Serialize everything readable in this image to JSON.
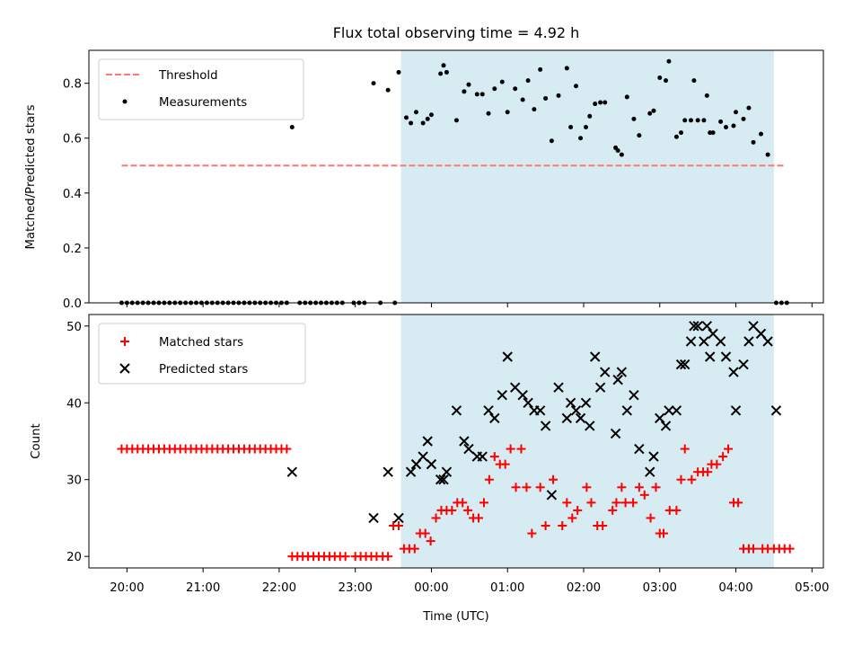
{
  "title": "Flux total observing time = 4.92 h",
  "colors": {
    "threshold": "#ff7777",
    "measurement": "#000000",
    "matched": "#ff0000",
    "predicted": "#000000",
    "span": "#add8e6"
  },
  "chart_data": [
    {
      "type": "scatter",
      "ylabel": "Matched/Predicted stars",
      "xlim": [
        19.5,
        29.15
      ],
      "ylim": [
        0,
        0.92
      ],
      "yticks": [
        0.0,
        0.2,
        0.4,
        0.6,
        0.8
      ],
      "ytick_labels": [
        "0.0",
        "0.2",
        "0.4",
        "0.6",
        "0.8"
      ],
      "shaded_span": [
        23.6,
        28.5
      ],
      "legend": {
        "placement": "upper left",
        "entries": [
          "Threshold",
          "Measurements"
        ]
      },
      "threshold": {
        "name": "Threshold",
        "x": [
          19.93,
          28.65
        ],
        "y": 0.5,
        "style": "dashed"
      },
      "series": [
        {
          "name": "Measurements",
          "x": [
            19.93,
            20.0,
            20.07,
            20.14,
            20.21,
            20.28,
            20.35,
            20.42,
            20.49,
            20.56,
            20.63,
            20.7,
            20.77,
            20.84,
            20.91,
            20.98,
            21.05,
            21.12,
            21.19,
            21.26,
            21.33,
            21.4,
            21.47,
            21.54,
            21.61,
            21.68,
            21.75,
            21.82,
            21.89,
            21.96,
            22.03,
            22.1,
            22.17,
            22.27,
            22.34,
            22.41,
            22.48,
            22.55,
            22.62,
            22.69,
            22.76,
            22.83,
            22.98,
            23.05,
            23.12,
            23.24,
            23.33,
            23.43,
            23.52,
            23.57,
            23.67,
            23.73,
            23.8,
            23.89,
            23.95,
            24.0,
            24.12,
            24.16,
            24.2,
            24.33,
            24.43,
            24.49,
            24.6,
            24.67,
            24.75,
            24.83,
            24.93,
            25.0,
            25.1,
            25.2,
            25.27,
            25.35,
            25.43,
            25.5,
            25.58,
            25.67,
            25.78,
            25.83,
            25.9,
            25.96,
            26.03,
            26.08,
            26.15,
            26.22,
            26.28,
            26.42,
            26.45,
            26.5,
            26.57,
            26.66,
            26.73,
            26.87,
            26.92,
            27.0,
            27.08,
            27.12,
            27.22,
            27.28,
            27.33,
            27.41,
            27.45,
            27.5,
            27.58,
            27.62,
            27.66,
            27.7,
            27.8,
            27.87,
            27.97,
            28.0,
            28.1,
            28.17,
            28.23,
            28.33,
            28.42,
            28.53,
            28.6,
            28.67
          ],
          "y": [
            0,
            0,
            0,
            0,
            0,
            0,
            0,
            0,
            0,
            0,
            0,
            0,
            0,
            0,
            0,
            0,
            0,
            0,
            0,
            0,
            0,
            0,
            0,
            0,
            0,
            0,
            0,
            0,
            0,
            0,
            0,
            0,
            0.64,
            0,
            0,
            0,
            0,
            0,
            0,
            0,
            0,
            0,
            0,
            0,
            0,
            0.8,
            0,
            0.775,
            0,
            0.84,
            0.675,
            0.655,
            0.695,
            0.655,
            0.67,
            0.685,
            0.835,
            0.865,
            0.84,
            0.665,
            0.77,
            0.795,
            0.76,
            0.76,
            0.69,
            0.78,
            0.805,
            0.695,
            0.78,
            0.74,
            0.81,
            0.705,
            0.85,
            0.745,
            0.59,
            0.755,
            0.855,
            0.64,
            0.79,
            0.6,
            0.64,
            0.68,
            0.725,
            0.73,
            0.73,
            0.565,
            0.555,
            0.54,
            0.75,
            0.67,
            0.61,
            0.69,
            0.7,
            0.82,
            0.81,
            0.88,
            0.605,
            0.62,
            0.665,
            0.665,
            0.81,
            0.665,
            0.665,
            0.755,
            0.62,
            0.62,
            0.66,
            0.64,
            0.645,
            0.695,
            0.67,
            0.71,
            0.585,
            0.615,
            0.54,
            0.0,
            0.0,
            0.0
          ]
        }
      ]
    },
    {
      "type": "scatter",
      "xlabel": "Time (UTC)",
      "ylabel": "Count",
      "xlim": [
        19.5,
        29.15
      ],
      "ylim": [
        18.5,
        51.5
      ],
      "yticks": [
        20,
        30,
        40,
        50
      ],
      "ytick_labels": [
        "20",
        "30",
        "40",
        "50"
      ],
      "xticks": [
        20,
        21,
        22,
        23,
        24,
        25,
        26,
        27,
        28,
        29
      ],
      "xtick_labels": [
        "20:00",
        "21:00",
        "22:00",
        "23:00",
        "00:00",
        "01:00",
        "02:00",
        "03:00",
        "04:00",
        "05:00"
      ],
      "shaded_span": [
        23.6,
        28.5
      ],
      "legend": {
        "placement": "upper left",
        "entries": [
          "Matched stars",
          "Predicted stars"
        ]
      },
      "series": [
        {
          "name": "Matched stars",
          "marker": "plus",
          "x": [
            19.93,
            20.0,
            20.07,
            20.14,
            20.21,
            20.28,
            20.35,
            20.42,
            20.49,
            20.56,
            20.63,
            20.7,
            20.77,
            20.84,
            20.91,
            20.98,
            21.05,
            21.12,
            21.19,
            21.26,
            21.33,
            21.4,
            21.47,
            21.54,
            21.61,
            21.68,
            21.75,
            21.82,
            21.89,
            21.96,
            22.03,
            22.1,
            22.17,
            22.24,
            22.31,
            22.38,
            22.45,
            22.52,
            22.59,
            22.66,
            22.73,
            22.8,
            22.87,
            23.0,
            23.07,
            23.14,
            23.21,
            23.28,
            23.36,
            23.43,
            23.5,
            23.57,
            23.64,
            23.71,
            23.78,
            23.85,
            23.92,
            23.99,
            24.06,
            24.13,
            24.2,
            24.27,
            24.34,
            24.41,
            24.48,
            24.55,
            24.62,
            24.69,
            24.76,
            24.83,
            24.9,
            24.97,
            25.04,
            25.11,
            25.18,
            25.25,
            25.32,
            25.43,
            25.5,
            25.6,
            25.72,
            25.78,
            25.85,
            25.92,
            26.04,
            26.1,
            26.18,
            26.25,
            26.38,
            26.43,
            26.5,
            26.55,
            26.65,
            26.73,
            26.8,
            26.88,
            26.95,
            27.0,
            27.05,
            27.13,
            27.22,
            27.28,
            27.33,
            27.42,
            27.5,
            27.57,
            27.63,
            27.68,
            27.75,
            27.83,
            27.9,
            27.97,
            28.03,
            28.1,
            28.17,
            28.23,
            28.35,
            28.42,
            28.5,
            28.57,
            28.64,
            28.71
          ],
          "y": [
            34,
            34,
            34,
            34,
            34,
            34,
            34,
            34,
            34,
            34,
            34,
            34,
            34,
            34,
            34,
            34,
            34,
            34,
            34,
            34,
            34,
            34,
            34,
            34,
            34,
            34,
            34,
            34,
            34,
            34,
            34,
            34,
            20,
            20,
            20,
            20,
            20,
            20,
            20,
            20,
            20,
            20,
            20,
            20,
            20,
            20,
            20,
            20,
            20,
            20,
            24,
            24,
            21,
            21,
            21,
            23,
            23,
            22,
            25,
            26,
            26,
            26,
            27,
            27,
            26,
            25,
            25,
            27,
            30,
            33,
            32,
            32,
            34,
            29,
            34,
            29,
            23,
            29,
            24,
            30,
            24,
            27,
            25,
            26,
            29,
            27,
            24,
            24,
            26,
            27,
            29,
            27,
            27,
            29,
            28,
            25,
            29,
            23,
            23,
            26,
            26,
            30,
            34,
            30,
            31,
            31,
            31,
            32,
            32,
            33,
            34,
            27,
            27,
            21,
            21,
            21,
            21,
            21,
            21,
            21,
            21,
            21
          ],
          "note_excluded": []
        },
        {
          "name": "Predicted stars",
          "marker": "x",
          "x": [
            22.17,
            23.24,
            23.43,
            23.57,
            23.73,
            23.8,
            23.89,
            23.95,
            24.0,
            24.12,
            24.16,
            24.2,
            24.33,
            24.43,
            24.49,
            24.6,
            24.67,
            24.75,
            24.83,
            24.93,
            25.0,
            25.1,
            25.2,
            25.27,
            25.35,
            25.43,
            25.5,
            25.58,
            25.67,
            25.78,
            25.83,
            25.9,
            25.96,
            26.03,
            26.08,
            26.15,
            26.22,
            26.28,
            26.42,
            26.45,
            26.5,
            26.57,
            26.66,
            26.73,
            26.87,
            26.92,
            27.0,
            27.08,
            27.12,
            27.22,
            27.28,
            27.33,
            27.41,
            27.45,
            27.5,
            27.58,
            27.62,
            27.66,
            27.7,
            27.8,
            27.87,
            27.97,
            28.0,
            28.1,
            28.17,
            28.23,
            28.33,
            28.42,
            28.53
          ],
          "y": [
            31,
            25,
            31,
            25,
            31,
            32,
            33,
            35,
            32,
            30,
            30,
            31,
            39,
            35,
            34,
            33,
            33,
            39,
            38,
            41,
            46,
            42,
            41,
            40,
            39,
            39,
            37,
            28,
            42,
            38,
            40,
            39,
            38,
            40,
            37,
            46,
            42,
            44,
            36,
            43,
            44,
            39,
            41,
            34,
            31,
            33,
            38,
            37,
            39,
            39,
            45,
            45,
            48,
            50,
            50,
            48,
            50,
            46,
            49,
            48,
            46,
            44,
            39,
            45,
            48,
            50,
            49,
            48,
            39
          ]
        }
      ]
    }
  ]
}
